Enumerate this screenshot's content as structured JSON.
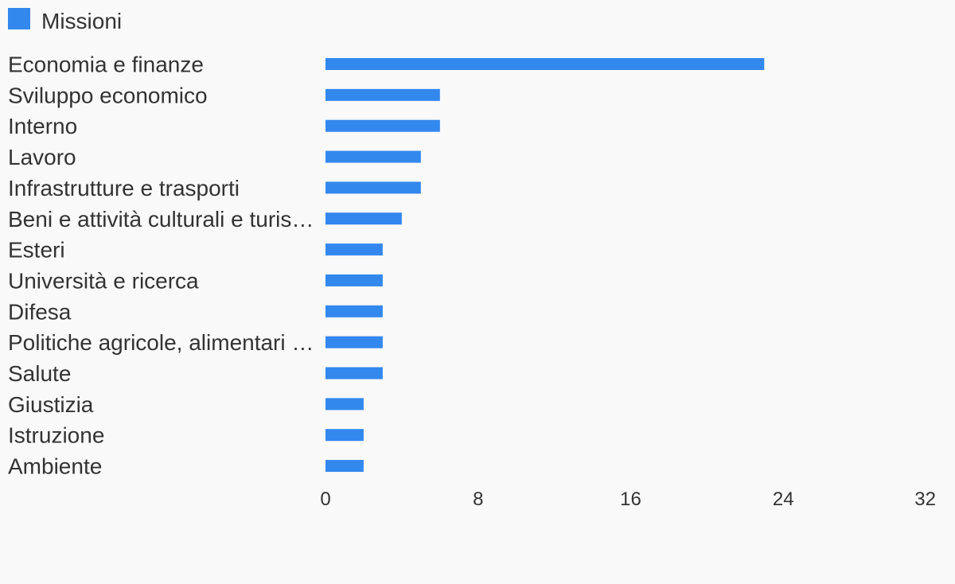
{
  "chart_data": {
    "type": "bar",
    "orientation": "horizontal",
    "categories": [
      "Economia e finanze",
      "Sviluppo economico",
      "Interno",
      "Lavoro",
      "Infrastrutture e trasporti",
      "Beni e attività culturali e turis…",
      "Esteri",
      "Università e ricerca",
      "Difesa",
      "Politiche agricole, alimentari …",
      "Salute",
      "Giustizia",
      "Istruzione",
      "Ambiente"
    ],
    "series": [
      {
        "name": "Missioni",
        "color": "#3388ee",
        "values": [
          23,
          6,
          6,
          5,
          5,
          4,
          3,
          3,
          3,
          3,
          3,
          2,
          2,
          2
        ]
      }
    ],
    "xlim": [
      0,
      32
    ],
    "xticks": [
      0,
      8,
      16,
      24,
      32
    ],
    "grid": false,
    "legend_position": "top-left"
  }
}
